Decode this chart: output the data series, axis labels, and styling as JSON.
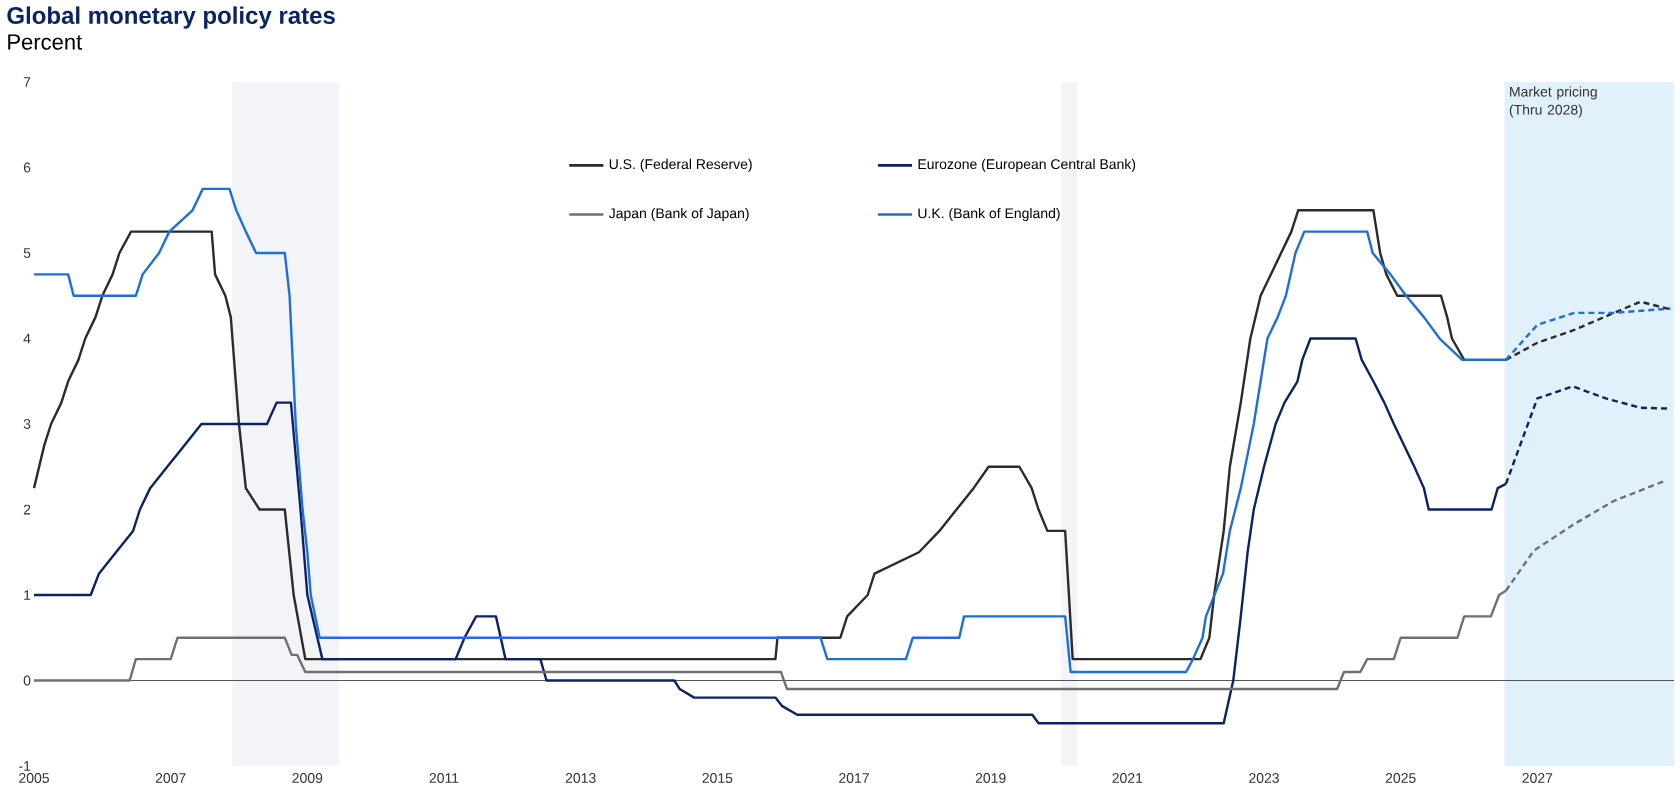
{
  "chart_data": {
    "type": "line",
    "title": "Global monetary policy rates",
    "subtitle": "Percent",
    "xlim": [
      2005,
      2029
    ],
    "ylim": [
      -1,
      7
    ],
    "xticks": [
      2005,
      2007,
      2009,
      2011,
      2013,
      2015,
      2017,
      2019,
      2021,
      2023,
      2025,
      2027
    ],
    "yticks": [
      -1,
      0,
      1,
      2,
      3,
      4,
      5,
      6,
      7
    ],
    "grid": false,
    "legend": "top",
    "marker": "none",
    "line_style": "solid",
    "bands": [
      {
        "axis": "x",
        "from": 2007.9,
        "to": 2009.47,
        "color": "#f3f4f7"
      },
      {
        "axis": "x",
        "from": 2020.03,
        "to": 2020.26,
        "color": "#f3f4f7"
      },
      {
        "axis": "x",
        "from": 2026.52,
        "to": 2029,
        "color": "#e0f1fc",
        "label": "Market pricing (Thru 2028)"
      }
    ],
    "ref_lines": [
      {
        "axis": "y",
        "value": 0,
        "color": "#555555"
      }
    ],
    "series": [
      {
        "name": "U.S. (Federal Reserve)",
        "color": "#2b2b2b",
        "x": [
          2005.0,
          2005.15,
          2005.25,
          2005.4,
          2005.5,
          2005.65,
          2005.75,
          2005.9,
          2006.0,
          2006.15,
          2006.25,
          2006.42,
          2007.6,
          2007.65,
          2007.8,
          2007.88,
          2008.0,
          2008.1,
          2008.3,
          2008.67,
          2008.8,
          2008.97,
          2015.85,
          2015.88,
          2016.8,
          2016.9,
          2017.2,
          2017.3,
          2017.95,
          2018.25,
          2018.5,
          2018.75,
          2018.97,
          2019.42,
          2019.6,
          2019.7,
          2019.83,
          2020.09,
          2020.2,
          2022.07,
          2022.2,
          2022.27,
          2022.41,
          2022.5,
          2022.66,
          2022.8,
          2022.95,
          2023.1,
          2023.25,
          2023.4,
          2023.5,
          2024.6,
          2024.7,
          2024.79,
          2024.95,
          2025.59,
          2025.68,
          2025.75,
          2025.93,
          2026.54
        ],
        "values": [
          2.25,
          2.75,
          3.0,
          3.25,
          3.5,
          3.75,
          4.0,
          4.25,
          4.5,
          4.75,
          5.0,
          5.25,
          5.25,
          4.75,
          4.5,
          4.25,
          3.0,
          2.25,
          2.0,
          2.0,
          1.0,
          0.25,
          0.25,
          0.5,
          0.5,
          0.75,
          1.0,
          1.25,
          1.5,
          1.75,
          2.0,
          2.25,
          2.5,
          2.5,
          2.25,
          2.0,
          1.75,
          1.75,
          0.25,
          0.25,
          0.5,
          1.0,
          1.75,
          2.5,
          3.25,
          4.0,
          4.5,
          4.75,
          5.0,
          5.25,
          5.5,
          5.5,
          5.0,
          4.75,
          4.5,
          4.5,
          4.25,
          4.0,
          3.75,
          3.75
        ]
      },
      {
        "name": "Eurozone (European Central Bank)",
        "color": "#0b2265",
        "x": [
          2005.0,
          2005.83,
          2005.95,
          2006.2,
          2006.45,
          2006.55,
          2006.7,
          2006.95,
          2007.2,
          2007.45,
          2008.41,
          2008.55,
          2008.76,
          2008.9,
          2009.0,
          2009.22,
          2011.17,
          2011.3,
          2011.47,
          2011.76,
          2011.83,
          2011.9,
          2012.41,
          2012.5,
          2014.37,
          2014.45,
          2014.66,
          2015.85,
          2015.95,
          2016.17,
          2019.61,
          2019.7,
          2022.41,
          2022.55,
          2022.66,
          2022.76,
          2022.85,
          2023.0,
          2023.17,
          2023.3,
          2023.49,
          2023.56,
          2023.68,
          2024.34,
          2024.43,
          2024.6,
          2024.76,
          2024.9,
          2025.05,
          2025.2,
          2025.34,
          2025.41,
          2026.33,
          2026.42,
          2026.54
        ],
        "values": [
          1.0,
          1.0,
          1.25,
          1.5,
          1.75,
          2.0,
          2.25,
          2.5,
          2.75,
          3.0,
          3.0,
          3.25,
          3.25,
          2.0,
          1.0,
          0.25,
          0.25,
          0.5,
          0.75,
          0.75,
          0.5,
          0.25,
          0.25,
          0.0,
          0.0,
          -0.1,
          -0.2,
          -0.2,
          -0.3,
          -0.4,
          -0.4,
          -0.5,
          -0.5,
          0.0,
          0.75,
          1.5,
          2.0,
          2.5,
          3.0,
          3.25,
          3.5,
          3.75,
          4.0,
          4.0,
          3.75,
          3.5,
          3.25,
          3.0,
          2.75,
          2.5,
          2.25,
          2.0,
          2.0,
          2.25,
          2.3
        ]
      },
      {
        "name": "Japan (Bank of Japan)",
        "color": "#707070",
        "x": [
          2005.0,
          2006.4,
          2006.49,
          2007.0,
          2007.1,
          2008.67,
          2008.77,
          2008.85,
          2008.97,
          2015.93,
          2016.02,
          2024.07,
          2024.17,
          2024.41,
          2024.51,
          2024.9,
          2025.0,
          2025.83,
          2025.93,
          2026.32,
          2026.44,
          2026.54
        ],
        "values": [
          0.0,
          0.0,
          0.25,
          0.25,
          0.5,
          0.5,
          0.3,
          0.3,
          0.1,
          0.1,
          -0.1,
          -0.1,
          0.1,
          0.1,
          0.25,
          0.25,
          0.5,
          0.5,
          0.75,
          0.75,
          1.0,
          1.05
        ]
      },
      {
        "name": "U.K. (Bank of England)",
        "color": "#1f6fd6",
        "x": [
          2005.0,
          2005.5,
          2005.58,
          2006.49,
          2006.59,
          2006.83,
          2006.98,
          2007.32,
          2007.47,
          2007.86,
          2007.96,
          2008.1,
          2008.25,
          2008.67,
          2008.74,
          2008.83,
          2008.93,
          2009.0,
          2009.05,
          2009.18,
          2016.51,
          2016.61,
          2017.76,
          2017.86,
          2018.54,
          2018.61,
          2020.09,
          2020.17,
          2021.86,
          2021.96,
          2022.1,
          2022.15,
          2022.4,
          2022.5,
          2022.66,
          2022.85,
          2022.95,
          2023.05,
          2023.2,
          2023.32,
          2023.46,
          2023.59,
          2024.51,
          2024.59,
          2024.85,
          2025.08,
          2025.34,
          2025.57,
          2025.9,
          2026.54
        ],
        "values": [
          4.75,
          4.75,
          4.5,
          4.5,
          4.75,
          5.0,
          5.25,
          5.5,
          5.75,
          5.75,
          5.5,
          5.25,
          5.0,
          5.0,
          4.5,
          3.0,
          2.0,
          1.5,
          1.0,
          0.5,
          0.5,
          0.25,
          0.25,
          0.5,
          0.5,
          0.75,
          0.75,
          0.1,
          0.1,
          0.25,
          0.5,
          0.75,
          1.25,
          1.75,
          2.25,
          3.0,
          3.5,
          4.0,
          4.25,
          4.5,
          5.0,
          5.25,
          5.25,
          5.0,
          4.75,
          4.5,
          4.25,
          4.0,
          3.75,
          3.75
        ]
      },
      {
        "color": "#2b2b2b",
        "line_style": "dashed",
        "x": [
          2026.54,
          2027.0,
          2027.54,
          2028.12,
          2028.51,
          2028.95
        ],
        "values": [
          3.75,
          3.95,
          4.1,
          4.3,
          4.43,
          4.34
        ]
      },
      {
        "color": "#0b2265",
        "line_style": "dashed",
        "x": [
          2026.54,
          2027.0,
          2027.52,
          2028.0,
          2028.51,
          2028.95
        ],
        "values": [
          2.3,
          3.3,
          3.44,
          3.3,
          3.19,
          3.18
        ]
      },
      {
        "color": "#707070",
        "line_style": "dashed",
        "x": [
          2026.54,
          2026.95,
          2027.54,
          2028.12,
          2028.85
        ],
        "values": [
          1.05,
          1.52,
          1.83,
          2.1,
          2.33
        ]
      },
      {
        "color": "#1f6fd6",
        "line_style": "dashed",
        "x": [
          2026.54,
          2027.0,
          2027.54,
          2028.12,
          2028.95
        ],
        "values": [
          3.75,
          4.16,
          4.3,
          4.3,
          4.35
        ]
      }
    ]
  }
}
